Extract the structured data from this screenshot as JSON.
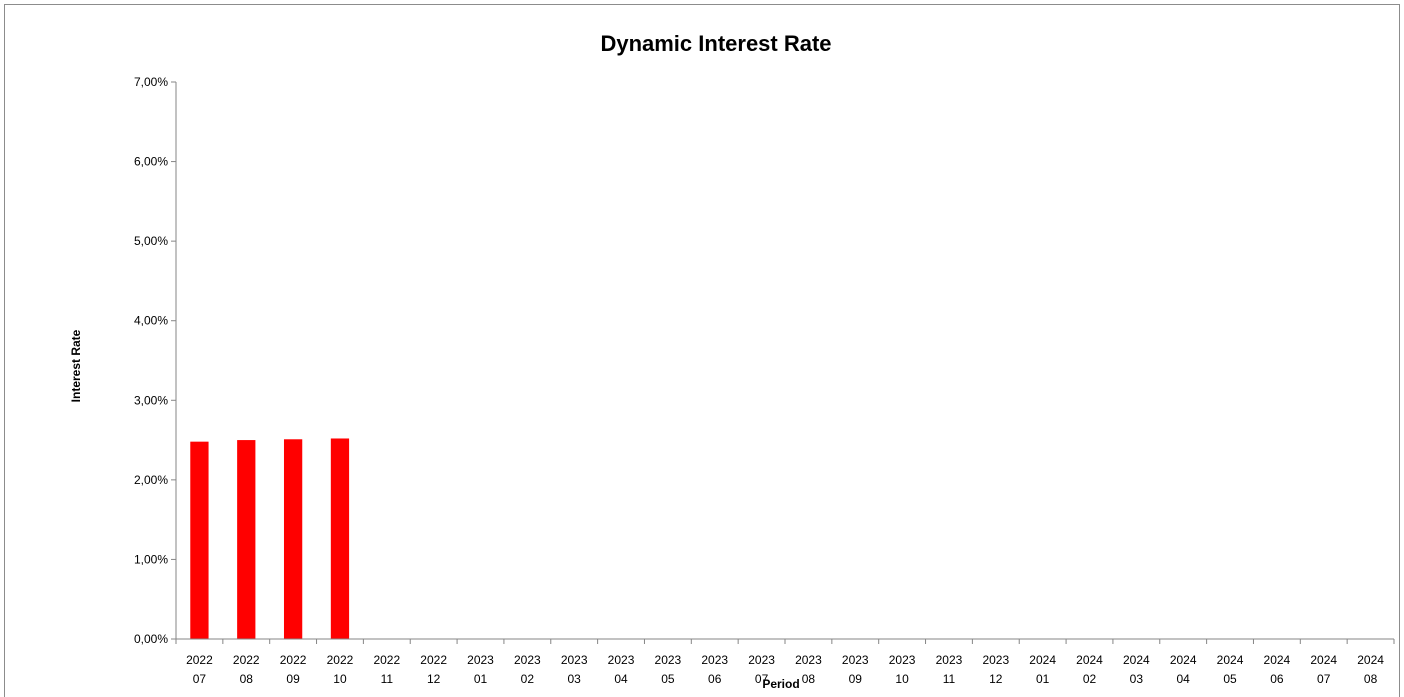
{
  "chart_data": {
    "type": "bar",
    "title": "Dynamic Interest Rate",
    "xlabel": "Period",
    "ylabel": "Interest Rate",
    "ylim": [
      0,
      0.07
    ],
    "yticks": [
      "0,00%",
      "1,00%",
      "2,00%",
      "3,00%",
      "4,00%",
      "5,00%",
      "6,00%",
      "7,00%"
    ],
    "grid": false,
    "categories": [
      [
        "2022",
        "07"
      ],
      [
        "2022",
        "08"
      ],
      [
        "2022",
        "09"
      ],
      [
        "2022",
        "10"
      ],
      [
        "2022",
        "11"
      ],
      [
        "2022",
        "12"
      ],
      [
        "2023",
        "01"
      ],
      [
        "2023",
        "02"
      ],
      [
        "2023",
        "03"
      ],
      [
        "2023",
        "04"
      ],
      [
        "2023",
        "05"
      ],
      [
        "2023",
        "06"
      ],
      [
        "2023",
        "07"
      ],
      [
        "2023",
        "08"
      ],
      [
        "2023",
        "09"
      ],
      [
        "2023",
        "10"
      ],
      [
        "2023",
        "11"
      ],
      [
        "2023",
        "12"
      ],
      [
        "2024",
        "01"
      ],
      [
        "2024",
        "02"
      ],
      [
        "2024",
        "03"
      ],
      [
        "2024",
        "04"
      ],
      [
        "2024",
        "05"
      ],
      [
        "2024",
        "06"
      ],
      [
        "2024",
        "07"
      ],
      [
        "2024",
        "08"
      ]
    ],
    "values": [
      0.0248,
      0.025,
      0.0251,
      0.0252,
      null,
      null,
      null,
      null,
      null,
      null,
      null,
      null,
      null,
      null,
      null,
      null,
      null,
      null,
      null,
      null,
      null,
      null,
      null,
      null,
      null,
      null
    ],
    "bar_color": "#ff0000",
    "axis_color": "#868686"
  }
}
